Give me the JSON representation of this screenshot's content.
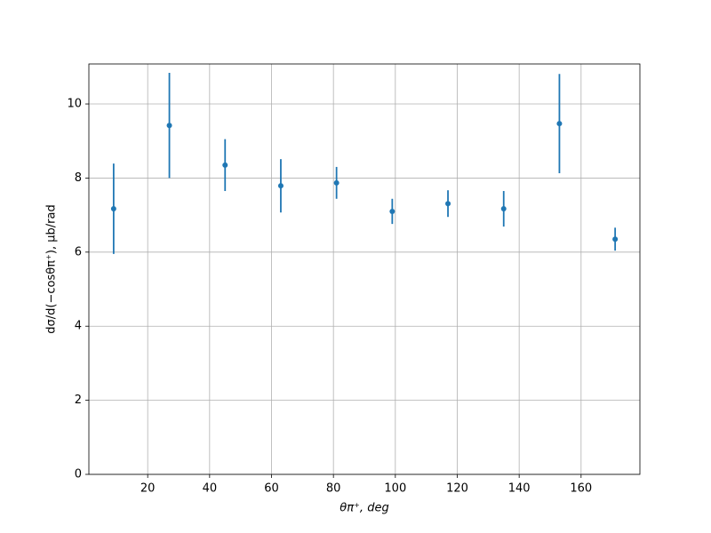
{
  "chart_data": {
    "type": "errorbar",
    "x_label": "θπ⁺, deg",
    "y_label": "dσ/d(−cosθπ⁺), μb/rad",
    "x": [
      9,
      27,
      45,
      63,
      81,
      99,
      117,
      135,
      153,
      171
    ],
    "series": [
      {
        "color": "#1f77b4",
        "values": [
          7.17,
          9.42,
          8.35,
          7.79,
          7.87,
          7.1,
          7.31,
          7.17,
          9.47,
          6.35
        ],
        "errors": [
          1.22,
          1.42,
          0.7,
          0.72,
          0.43,
          0.34,
          0.36,
          0.48,
          1.34,
          0.31
        ]
      }
    ],
    "xlim": [
      1,
      179
    ],
    "ylim": [
      0,
      11.08
    ],
    "xticks": [
      20,
      40,
      60,
      80,
      100,
      120,
      140,
      160
    ],
    "yticks": [
      0,
      2,
      4,
      6,
      8,
      10
    ],
    "grid": true
  }
}
